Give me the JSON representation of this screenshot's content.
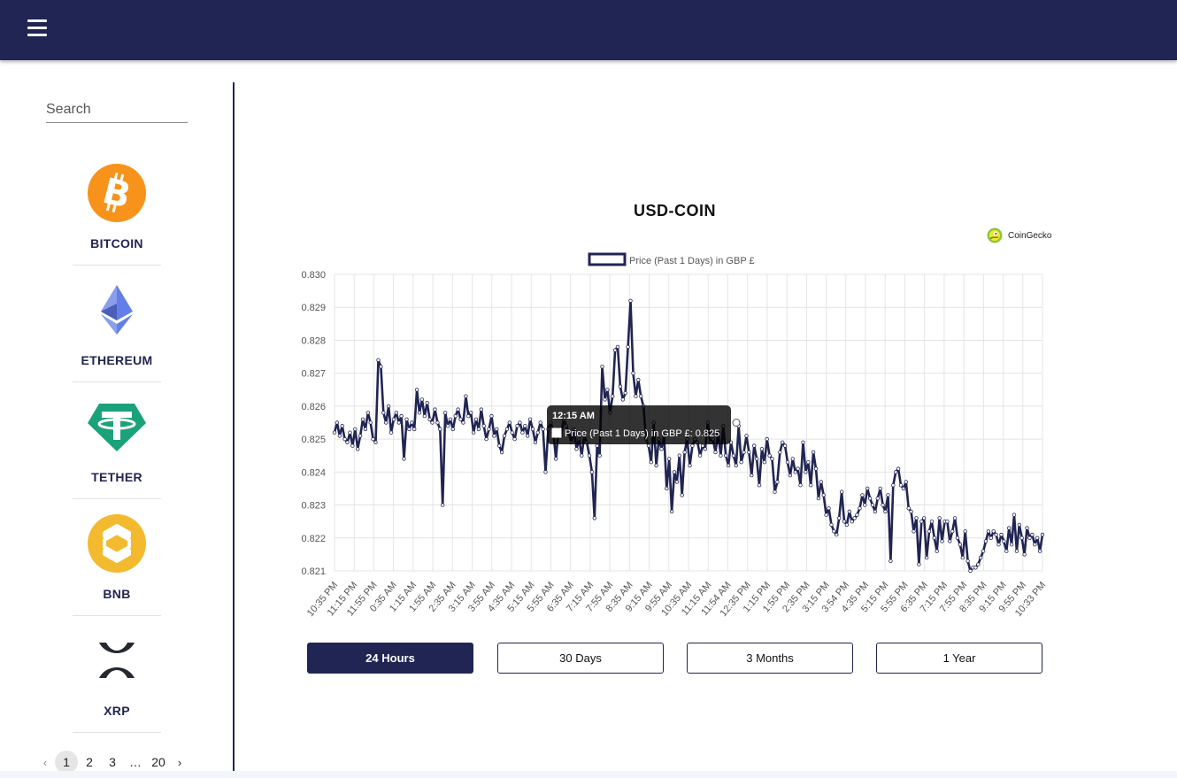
{
  "header": {
    "menu_icon": "hamburger-menu-icon"
  },
  "sidebar": {
    "search_placeholder": "Search",
    "coins": [
      {
        "name": "BITCOIN",
        "icon": "bitcoin-icon",
        "color": "#F7931A"
      },
      {
        "name": "ETHEREUM",
        "icon": "ethereum-icon",
        "color": "#627EEA"
      },
      {
        "name": "TETHER",
        "icon": "tether-icon",
        "color": "#1BA27A"
      },
      {
        "name": "BNB",
        "icon": "bnb-icon",
        "color": "#F3BA2F"
      },
      {
        "name": "XRP",
        "icon": "xrp-icon",
        "color": "#23292F"
      }
    ],
    "pagination": {
      "pages": [
        "1",
        "2",
        "3",
        "…",
        "20"
      ],
      "current": "1"
    }
  },
  "main": {
    "title": "USD-COIN",
    "attribution": "CoinGecko",
    "range_buttons": [
      "24 Hours",
      "30 Days",
      "3 Months",
      "1 Year"
    ],
    "active_range": "24 Hours"
  },
  "chart_data": {
    "type": "line",
    "legend": "Price (Past 1 Days) in GBP £",
    "legend_position": "top",
    "grid": true,
    "series_color": "#212553",
    "ylim": [
      0.821,
      0.83
    ],
    "yticks": [
      "0.830",
      "0.829",
      "0.828",
      "0.827",
      "0.826",
      "0.825",
      "0.824",
      "0.823",
      "0.822",
      "0.821"
    ],
    "xticks": [
      "10:35 PM",
      "11:15 PM",
      "11:55 PM",
      "0:35 AM",
      "1:15 AM",
      "1:55 AM",
      "2:35 AM",
      "3:15 AM",
      "3:55 AM",
      "4:35 AM",
      "5:15 AM",
      "5:55 AM",
      "6:35 AM",
      "7:15 AM",
      "7:55 AM",
      "8:35 AM",
      "9:15 AM",
      "9:55 AM",
      "10:35 AM",
      "11:15 AM",
      "11:54 AM",
      "12:35 PM",
      "1:15 PM",
      "1:55 PM",
      "2:35 PM",
      "3:15 PM",
      "3:54 PM",
      "4:35 PM",
      "5:15 PM",
      "5:55 PM",
      "6:35 PM",
      "7:15 PM",
      "7:55 PM",
      "8:35 PM",
      "9:15 PM",
      "9:55 PM",
      "10:33 PM"
    ],
    "values": [
      0.8252,
      0.8255,
      0.8251,
      0.8254,
      0.825,
      0.8249,
      0.8252,
      0.8248,
      0.8253,
      0.8247,
      0.8251,
      0.8256,
      0.8253,
      0.8258,
      0.8255,
      0.825,
      0.8249,
      0.8274,
      0.8272,
      0.8258,
      0.8255,
      0.826,
      0.8252,
      0.8256,
      0.8258,
      0.8255,
      0.8257,
      0.8244,
      0.8256,
      0.8253,
      0.8255,
      0.8253,
      0.8265,
      0.8258,
      0.8262,
      0.8257,
      0.8261,
      0.8256,
      0.8255,
      0.8259,
      0.8255,
      0.8253,
      0.823,
      0.8258,
      0.8254,
      0.8256,
      0.8253,
      0.8257,
      0.8259,
      0.8256,
      0.8255,
      0.8263,
      0.8257,
      0.8258,
      0.8252,
      0.8256,
      0.8253,
      0.8259,
      0.8254,
      0.825,
      0.8253,
      0.8257,
      0.8251,
      0.8253,
      0.8248,
      0.8246,
      0.8251,
      0.8253,
      0.8255,
      0.8252,
      0.825,
      0.8254,
      0.8255,
      0.8252,
      0.8254,
      0.8251,
      0.8256,
      0.8253,
      0.8249,
      0.8252,
      0.8255,
      0.8253,
      0.824,
      0.8253,
      0.8255,
      0.8252,
      0.8244,
      0.8253,
      0.8251,
      0.8256,
      0.8254,
      0.8252,
      0.8249,
      0.8253,
      0.8247,
      0.825,
      0.8245,
      0.8251,
      0.8249,
      0.8245,
      0.824,
      0.8226,
      0.8248,
      0.8245,
      0.8272,
      0.8262,
      0.8265,
      0.8258,
      0.8263,
      0.8277,
      0.8278,
      0.8266,
      0.8262,
      0.8264,
      0.8278,
      0.8292,
      0.827,
      0.8263,
      0.8268,
      0.8263,
      0.826,
      0.825,
      0.8248,
      0.8243,
      0.8255,
      0.8242,
      0.825,
      0.8247,
      0.8251,
      0.8235,
      0.8244,
      0.8228,
      0.824,
      0.8237,
      0.8245,
      0.8233,
      0.8246,
      0.825,
      0.8242,
      0.8248,
      0.825,
      0.8249,
      0.8245,
      0.8248,
      0.8247,
      0.8255,
      0.8249,
      0.825,
      0.8246,
      0.8252,
      0.8245,
      0.8254,
      0.8245,
      0.8242,
      0.8249,
      0.8245,
      0.8242,
      0.8254,
      0.8243,
      0.8246,
      0.8251,
      0.8246,
      0.8239,
      0.8248,
      0.8244,
      0.8236,
      0.8247,
      0.8243,
      0.825,
      0.8245,
      0.8244,
      0.8234,
      0.8237,
      0.8246,
      0.8249,
      0.8248,
      0.8243,
      0.8239,
      0.8244,
      0.824,
      0.8241,
      0.8236,
      0.8249,
      0.824,
      0.8243,
      0.8236,
      0.8246,
      0.8241,
      0.8232,
      0.8237,
      0.8233,
      0.8227,
      0.8229,
      0.8224,
      0.8222,
      0.8221,
      0.8226,
      0.8234,
      0.8225,
      0.8224,
      0.8228,
      0.8225,
      0.8226,
      0.8227,
      0.8229,
      0.8233,
      0.823,
      0.8235,
      0.8232,
      0.823,
      0.8228,
      0.8232,
      0.8235,
      0.823,
      0.8228,
      0.8233,
      0.8213,
      0.8236,
      0.824,
      0.8241,
      0.8236,
      0.8235,
      0.8237,
      0.8229,
      0.8228,
      0.8222,
      0.8226,
      0.8212,
      0.8225,
      0.8226,
      0.8214,
      0.8222,
      0.8225,
      0.822,
      0.8216,
      0.8226,
      0.8219,
      0.8225,
      0.8225,
      0.8219,
      0.8222,
      0.8226,
      0.822,
      0.8218,
      0.8214,
      0.8222,
      0.8213,
      0.821,
      0.8211,
      0.8211,
      0.8212,
      0.8214,
      0.8216,
      0.8219,
      0.8222,
      0.822,
      0.8222,
      0.8221,
      0.8218,
      0.8221,
      0.8219,
      0.8216,
      0.8223,
      0.8218,
      0.8227,
      0.8216,
      0.8224,
      0.822,
      0.8215,
      0.8223,
      0.822,
      0.8221,
      0.8218,
      0.822,
      0.8216,
      0.8221
    ],
    "tooltip": {
      "time": "12:15 AM",
      "label": "Price (Past 1 Days) in GBP £: 0.825"
    }
  }
}
